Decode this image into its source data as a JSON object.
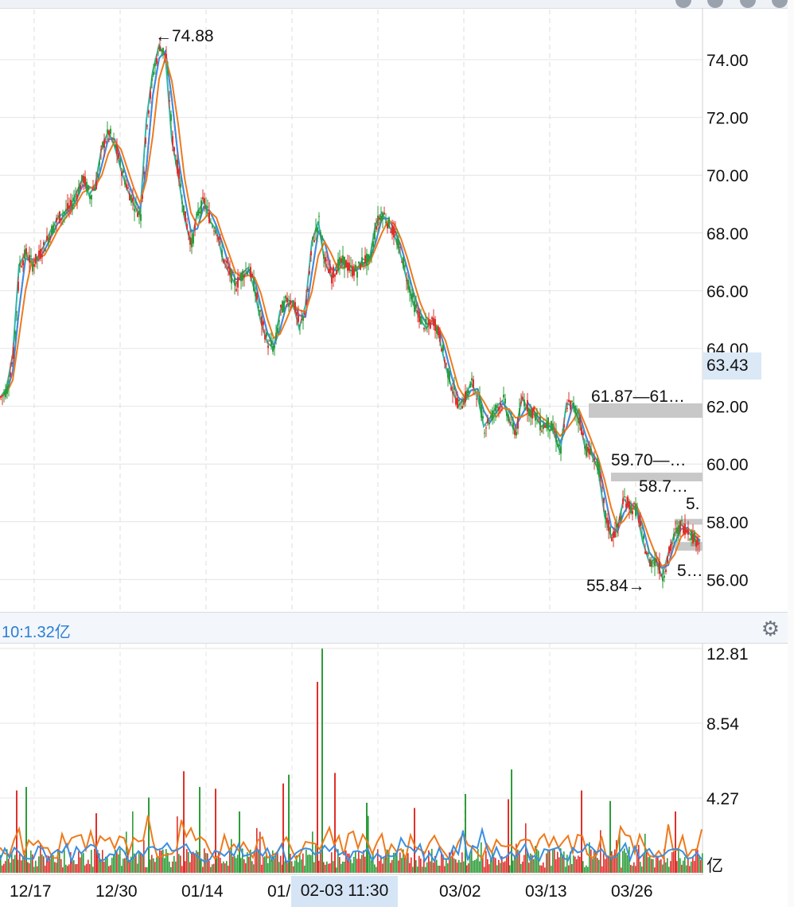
{
  "volume_header": {
    "label": "10:1.32亿"
  },
  "crosshair": {
    "price_label": "63.43",
    "time_label": "02-03 11:30"
  },
  "colors": {
    "up": "#e0302b",
    "down": "#2e9c3a",
    "ma_orange": "#ee7a1c",
    "ma_blue": "#3a8fe0",
    "ma_purple": "#b34fc9",
    "ma_teal": "#33b5a8",
    "band": "#c8c8c8"
  },
  "icons": {
    "settings": "gear-icon"
  },
  "chart_data": [
    {
      "type": "candlestick",
      "yticks": [
        "74.00",
        "72.00",
        "70.00",
        "68.00",
        "66.00",
        "64.00",
        "62.00",
        "60.00",
        "58.00",
        "56.00"
      ],
      "xticks": [
        "12/17",
        "12/30",
        "01/14",
        "01/",
        "03/02",
        "03/13",
        "03/26"
      ],
      "ylim": [
        55,
        75.5
      ],
      "grid": true,
      "series": [
        {
          "x": [
            0,
            8,
            16,
            24,
            32,
            40,
            48,
            56,
            64,
            72,
            80,
            88,
            96,
            104,
            112,
            120,
            128,
            136,
            144,
            152,
            160,
            168,
            176,
            184,
            192,
            200,
            208,
            216,
            224,
            232,
            240,
            248,
            256,
            264,
            272,
            280,
            288,
            296,
            304,
            312,
            320,
            328,
            336,
            344,
            352,
            360,
            368,
            376,
            384,
            392,
            400,
            408,
            416,
            424,
            432,
            440,
            448,
            456,
            464,
            472,
            480,
            488,
            496,
            504,
            512,
            520,
            528,
            536,
            544,
            552,
            560,
            568,
            576,
            584,
            592,
            600,
            608,
            616,
            624,
            632,
            640,
            648,
            656,
            664,
            672,
            680,
            688,
            696,
            704,
            712,
            720,
            728,
            736,
            744,
            752,
            760,
            768,
            776,
            784,
            792,
            800,
            808,
            816,
            824,
            832,
            840,
            848,
            856,
            864,
            872,
            880
          ],
          "y": [
            62.3,
            62.6,
            63.8,
            66.9,
            67.3,
            66.9,
            67.2,
            67.6,
            68.1,
            68.5,
            68.7,
            68.9,
            69.4,
            69.9,
            69.3,
            69.7,
            71.0,
            71.5,
            71.0,
            70.2,
            69.5,
            69.0,
            68.6,
            71.9,
            73.6,
            74.5,
            74.1,
            71.2,
            70.0,
            68.5,
            67.6,
            68.7,
            69.1,
            68.4,
            68.1,
            67.1,
            66.6,
            66.2,
            66.6,
            66.8,
            66.0,
            64.9,
            64.2,
            64.0,
            65.3,
            65.7,
            65.6,
            64.7,
            65.5,
            67.7,
            68.4,
            67.0,
            66.5,
            66.9,
            67.0,
            66.7,
            66.7,
            67.1,
            67.0,
            68.3,
            68.7,
            68.3,
            67.9,
            67.2,
            66.3,
            65.5,
            65.0,
            64.7,
            65.0,
            64.4,
            63.4,
            62.6,
            62.0,
            62.3,
            62.8,
            62.4,
            61.3,
            61.6,
            62.0,
            62.2,
            61.5,
            61.1,
            62.3,
            61.9,
            61.7,
            61.3,
            61.4,
            61.1,
            60.4,
            62.1,
            62.0,
            61.5,
            60.5,
            60.3,
            59.8,
            58.2,
            57.5,
            57.8,
            58.8,
            58.5,
            58.4,
            57.3,
            56.6,
            56.7,
            56.1,
            56.9,
            57.6,
            57.9,
            57.7,
            57.4,
            57.3
          ]
        }
      ],
      "annotations": [
        "←74.88",
        "55.84→",
        "61.87—61…",
        "59.70—…",
        "58.7…",
        "5.",
        "5…"
      ],
      "bands": [
        {
          "from": 61.6,
          "to": 62.1,
          "x_from": 740
        },
        {
          "from": 59.4,
          "to": 59.7,
          "x_from": 768
        },
        {
          "from": 57.9,
          "to": 58.1,
          "x_from": 848
        },
        {
          "from": 57.0,
          "to": 57.3,
          "x_from": 848
        }
      ]
    },
    {
      "type": "bar",
      "yticks": [
        "12.81",
        "8.54",
        "4.27",
        "亿"
      ],
      "ylim": [
        0,
        12.81
      ],
      "spikes": [
        {
          "x": 20,
          "value": 4.7
        },
        {
          "x": 32,
          "value": 4.9
        },
        {
          "x": 120,
          "value": 3.4
        },
        {
          "x": 186,
          "value": 4.3
        },
        {
          "x": 230,
          "value": 5.8
        },
        {
          "x": 250,
          "value": 4.9
        },
        {
          "x": 270,
          "value": 4.8
        },
        {
          "x": 300,
          "value": 3.5
        },
        {
          "x": 355,
          "value": 5.1
        },
        {
          "x": 362,
          "value": 5.6
        },
        {
          "x": 398,
          "value": 10.9
        },
        {
          "x": 404,
          "value": 12.8
        },
        {
          "x": 420,
          "value": 5.7
        },
        {
          "x": 460,
          "value": 4.0
        },
        {
          "x": 520,
          "value": 3.7
        },
        {
          "x": 584,
          "value": 4.5
        },
        {
          "x": 638,
          "value": 4.2
        },
        {
          "x": 642,
          "value": 5.9
        },
        {
          "x": 730,
          "value": 4.7
        },
        {
          "x": 766,
          "value": 4.1
        },
        {
          "x": 848,
          "value": 3.5
        }
      ]
    }
  ]
}
